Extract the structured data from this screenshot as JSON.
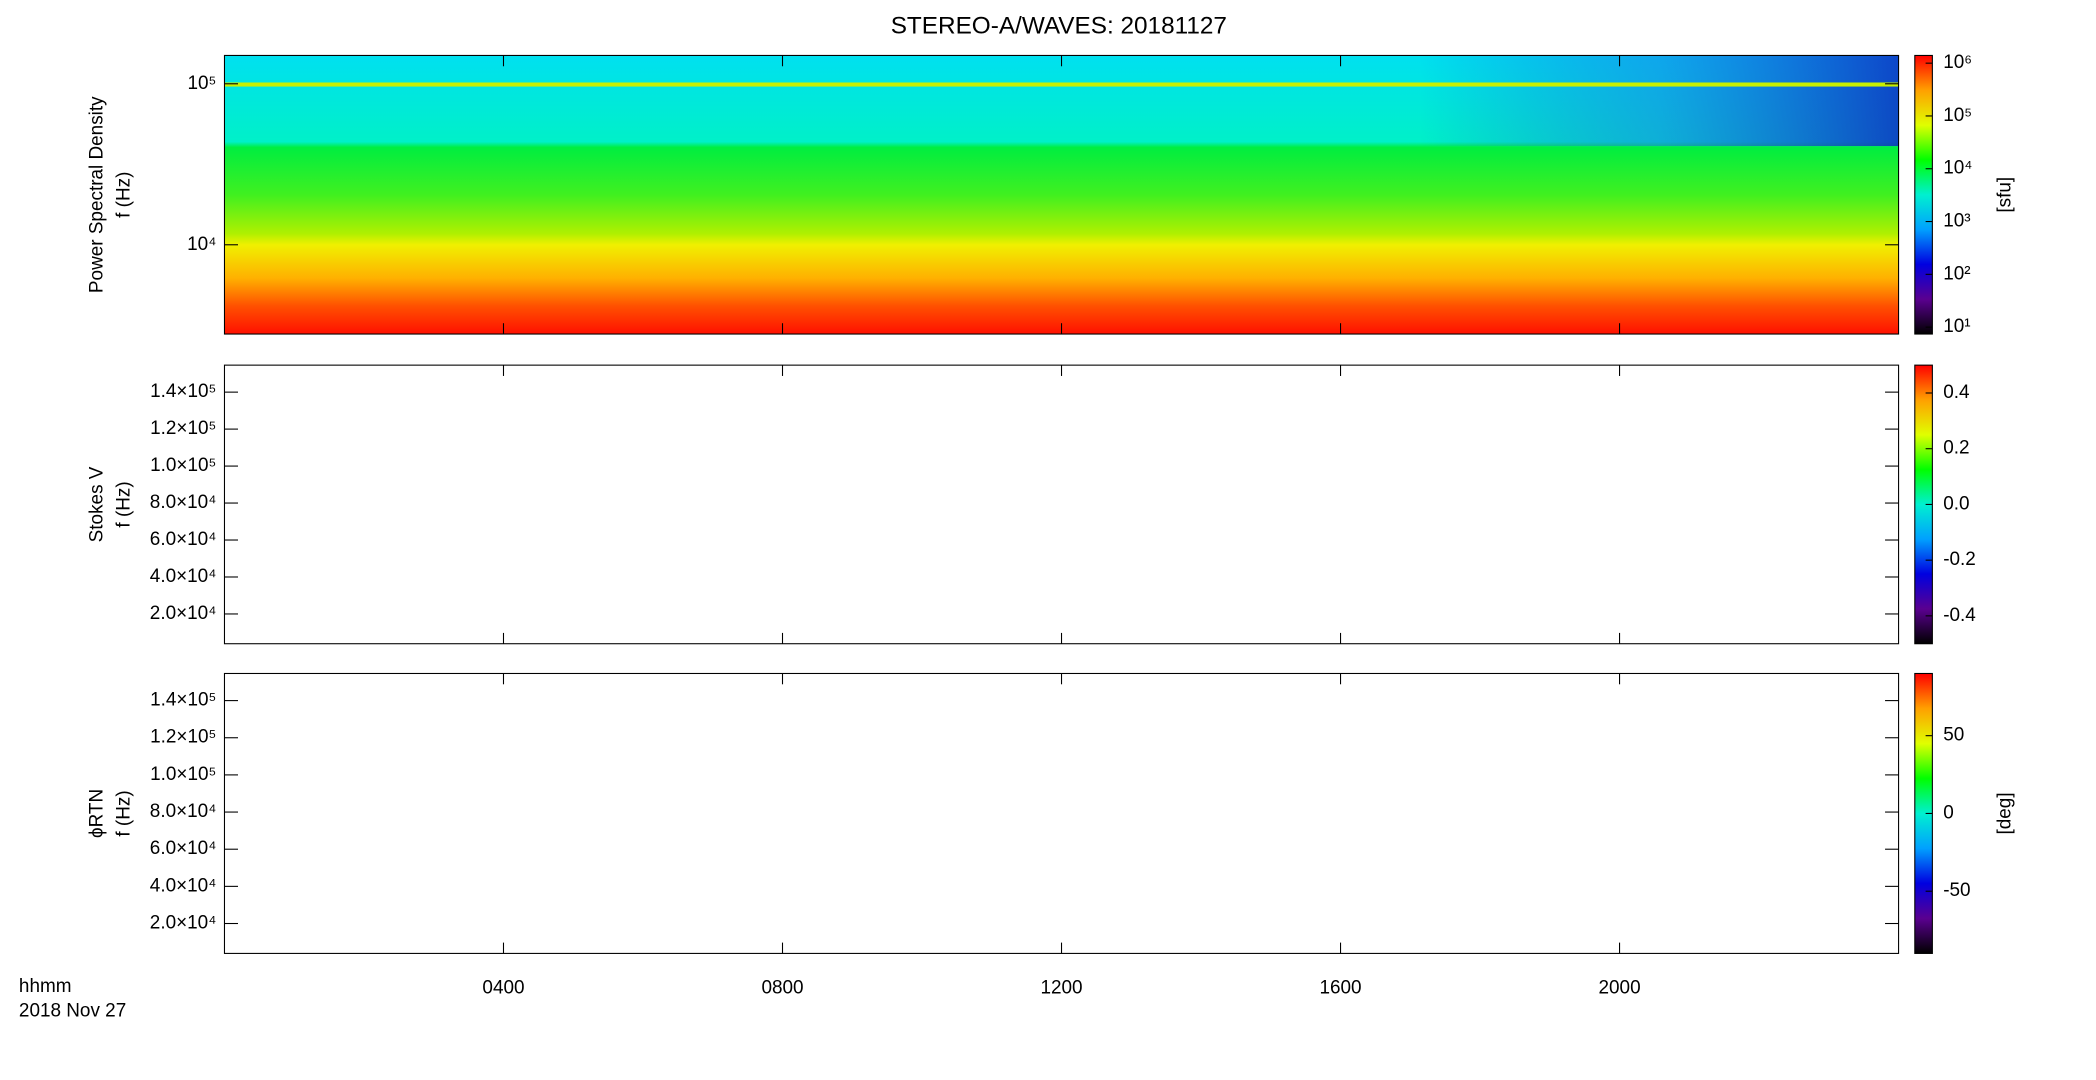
{
  "title": "STEREO-A/WAVES: 20181127",
  "x_axis": {
    "label": [
      "hhmm",
      "2018 Nov 27"
    ],
    "xlim": [
      0,
      24
    ],
    "xticks": [
      {
        "value": 4,
        "label": "0400"
      },
      {
        "value": 8,
        "label": "0800"
      },
      {
        "value": 12,
        "label": "1200"
      },
      {
        "value": 16,
        "label": "1600"
      },
      {
        "value": 20,
        "label": "2000"
      }
    ]
  },
  "chart_data": [
    {
      "type": "spectrogram",
      "ylabel": [
        "Power Spectral Density",
        "f (Hz)"
      ],
      "yscale": "log",
      "ylim": [
        2790,
        150000
      ],
      "yticks": [
        {
          "value": 10000,
          "label": "10⁴"
        },
        {
          "value": 100000,
          "label": "10⁵"
        }
      ],
      "colorbar": {
        "scale": "log",
        "lim": [
          7.4,
          1400000
        ],
        "ticks": [
          {
            "value": 10,
            "label": "10¹"
          },
          {
            "value": 100,
            "label": "10²"
          },
          {
            "value": 1000,
            "label": "10³"
          },
          {
            "value": 10000,
            "label": "10⁴"
          },
          {
            "value": 100000,
            "label": "10⁵"
          },
          {
            "value": 1000000,
            "label": "10⁶"
          }
        ],
        "label": "[sfu]",
        "colors": [
          "#000000",
          "#5a0090",
          "#0000e0",
          "#00a0ff",
          "#00f0d0",
          "#00ff00",
          "#e0ff00",
          "#ffa000",
          "#ff0000"
        ]
      }
    },
    {
      "type": "spectrogram",
      "ylabel": [
        "Stokes V",
        "f (Hz)"
      ],
      "yscale": "linear",
      "ylim": [
        3900,
        154600
      ],
      "yticks": [
        {
          "value": 20000,
          "label": "2.0×10⁴"
        },
        {
          "value": 40000,
          "label": "4.0×10⁴"
        },
        {
          "value": 60000,
          "label": "6.0×10⁴"
        },
        {
          "value": 80000,
          "label": "8.0×10⁴"
        },
        {
          "value": 100000,
          "label": "1.0×10⁵"
        },
        {
          "value": 120000,
          "label": "1.2×10⁵"
        },
        {
          "value": 140000,
          "label": "1.4×10⁵"
        }
      ],
      "colorbar": {
        "scale": "linear",
        "lim": [
          -0.5,
          0.5
        ],
        "ticks": [
          -0.4,
          -0.2,
          {
            "value": 0,
            "label": "0.0"
          },
          0.2,
          0.4
        ],
        "colors": [
          "#000000",
          "#5a0090",
          "#0000e0",
          "#00a0ff",
          "#00f0d0",
          "#00ff00",
          "#e0ff00",
          "#ffa000",
          "#ff0000"
        ]
      }
    },
    {
      "type": "spectrogram",
      "ylabel": [
        "ϕRTN",
        "f (Hz)"
      ],
      "yscale": "linear",
      "ylim": [
        3900,
        154600
      ],
      "yticks": [
        {
          "value": 20000,
          "label": "2.0×10⁴"
        },
        {
          "value": 40000,
          "label": "4.0×10⁴"
        },
        {
          "value": 60000,
          "label": "6.0×10⁴"
        },
        {
          "value": 80000,
          "label": "8.0×10⁴"
        },
        {
          "value": 100000,
          "label": "1.0×10⁵"
        },
        {
          "value": 120000,
          "label": "1.2×10⁵"
        },
        {
          "value": 140000,
          "label": "1.4×10⁵"
        }
      ],
      "colorbar": {
        "scale": "linear",
        "lim": [
          -90,
          90
        ],
        "ticks": [
          -50,
          0,
          50
        ],
        "label": "[deg]",
        "colors": [
          "#000000",
          "#5a0090",
          "#0000e0",
          "#00a0ff",
          "#00f0d0",
          "#00ff00",
          "#e0ff00",
          "#ffa000",
          "#ff0000"
        ]
      }
    }
  ]
}
